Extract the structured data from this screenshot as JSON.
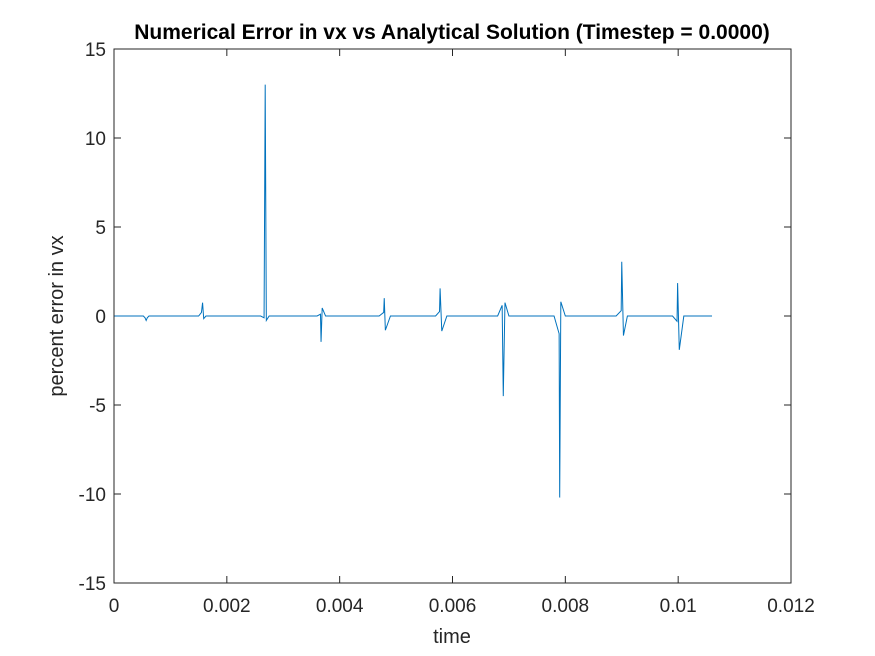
{
  "chart_data": {
    "type": "line",
    "title": "Numerical Error in vx vs Analytical Solution (Timestep = 0.0000)",
    "xlabel": "time",
    "ylabel": "percent error in vx",
    "xlim": [
      0,
      0.012
    ],
    "ylim": [
      -15,
      15
    ],
    "xticks": [
      0,
      0.002,
      0.004,
      0.006,
      0.008,
      0.01,
      0.012
    ],
    "xtick_labels": [
      "0",
      "0.002",
      "0.004",
      "0.006",
      "0.008",
      "0.01",
      "0.012"
    ],
    "yticks": [
      -15,
      -10,
      -5,
      0,
      5,
      10,
      15
    ],
    "ytick_labels": [
      "-15",
      "-10",
      "-5",
      "0",
      "5",
      "10",
      "15"
    ],
    "grid": false,
    "box": true,
    "series": [
      {
        "color": "#0072bd",
        "x": [
          0,
          0.00052,
          0.00055,
          0.00057,
          0.00059,
          0.00062,
          0.0015,
          0.00155,
          0.00157,
          0.00159,
          0.00163,
          0.0026,
          0.00266,
          0.00268,
          0.0027,
          0.00275,
          0.0036,
          0.00366,
          0.00367,
          0.00369,
          0.00375,
          0.0047,
          0.00478,
          0.00479,
          0.00481,
          0.0049,
          0.0057,
          0.00577,
          0.00578,
          0.00581,
          0.0059,
          0.0068,
          0.00688,
          0.0069,
          0.00693,
          0.007,
          0.0078,
          0.00789,
          0.0079,
          0.00792,
          0.008,
          0.0089,
          0.00899,
          0.009,
          0.00903,
          0.0091,
          0.0099,
          0.00998,
          0.00999,
          0.01002,
          0.0101,
          0.0106
        ],
        "values": [
          0,
          0,
          -0.1,
          -0.25,
          -0.1,
          0,
          0,
          0.2,
          0.75,
          -0.15,
          0,
          0,
          -0.1,
          13.0,
          -0.25,
          0,
          0,
          0.1,
          -1.45,
          0.45,
          0,
          0,
          0.2,
          1.0,
          -0.8,
          0,
          0,
          0.25,
          1.55,
          -0.85,
          0,
          0,
          0.6,
          -4.5,
          0.75,
          0,
          0,
          -1.0,
          -10.2,
          0.8,
          0,
          0,
          0.3,
          3.05,
          -1.1,
          0,
          0,
          -0.3,
          1.85,
          -1.9,
          0,
          0
        ]
      }
    ]
  }
}
